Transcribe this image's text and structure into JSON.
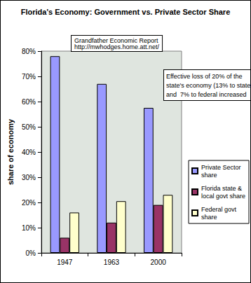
{
  "chart_data": {
    "type": "bar",
    "title": "Florida's Economy: Government vs. Private Sector Share",
    "y_label": "share of economy",
    "annotations": [
      "Grandfather Economic Report\nhttp://mwhodges.home.att.net/",
      "Effective loss of 20% of the\nstate's economy (13% to state\nand  7% to federal increased"
    ],
    "categories": [
      "1947",
      "1963",
      "2000"
    ],
    "series": [
      {
        "name": "Private Sector share",
        "color": "#9999ff",
        "values": [
          78,
          67,
          57.5
        ]
      },
      {
        "name": "Florida state & local govt share",
        "color": "#993366",
        "values": [
          6,
          12,
          19
        ]
      },
      {
        "name": "Federal govt share",
        "color": "#ffffcc",
        "values": [
          16,
          20.5,
          23
        ]
      }
    ],
    "ylim": [
      0,
      80
    ],
    "yticks": [
      {
        "value": 0,
        "label": "0%"
      },
      {
        "value": 10,
        "label": "10%"
      },
      {
        "value": 20,
        "label": "20%"
      },
      {
        "value": 30,
        "label": "30%"
      },
      {
        "value": 40,
        "label": "40%"
      },
      {
        "value": 50,
        "label": "50%"
      },
      {
        "value": 60,
        "label": "60%"
      },
      {
        "value": 70,
        "label": "70%"
      },
      {
        "value": 80,
        "label": "80%"
      }
    ],
    "grid": false,
    "legend": "right"
  }
}
